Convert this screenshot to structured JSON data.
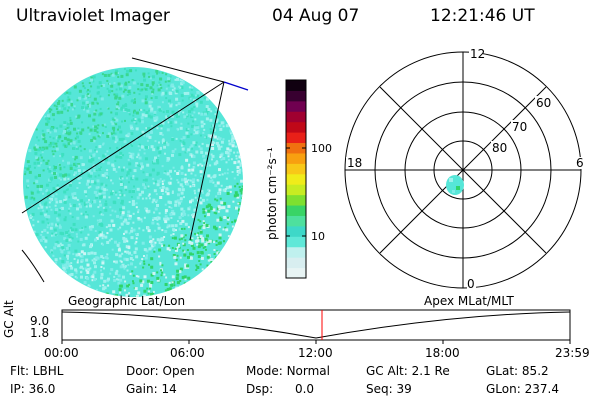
{
  "header": {
    "title": "Ultraviolet Imager",
    "date": "04 Aug 07",
    "time": "12:21:46 UT"
  },
  "colorbar": {
    "unit_label": "photon cm⁻²s⁻¹",
    "tick_100": "100",
    "tick_10": "10",
    "colors": [
      "#e8f4f4",
      "#d8eef0",
      "#bff0ee",
      "#5fe8d8",
      "#3ed8c8",
      "#4ee09e",
      "#39d466",
      "#7ee030",
      "#c7ec22",
      "#f0ec1a",
      "#f8c818",
      "#f8a010",
      "#f07010",
      "#e82018",
      "#c00818",
      "#a00030",
      "#700050",
      "#380030",
      "#100010"
    ],
    "colors_note": "color ramp from low to high"
  },
  "globe": {
    "base_color": "#56e6d8",
    "speckle_colors": [
      "#3ee0c0",
      "#7fece8",
      "#9ff2ee",
      "#cdf5f5",
      "#2fd46a",
      "#38d890"
    ]
  },
  "polar": {
    "labels_mlt": {
      "top": "12",
      "bottom": "0",
      "left": "18",
      "right": "6"
    },
    "labels_lat": [
      "60",
      "70",
      "80"
    ]
  },
  "timeline": {
    "left_title": "Geographic Lat/Lon",
    "right_title": "Apex MLat/MLT",
    "axis_label": "GC Alt",
    "y_top": "9.0",
    "y_bottom": "1.8",
    "time_ticks": [
      "00:00",
      "06:00",
      "12:00",
      "18:00",
      "23:59"
    ],
    "current_marker": "12:21:46"
  },
  "info": {
    "flt_label": "Flt:",
    "flt_value": "LBHL",
    "ip_label": "IP:",
    "ip_value": "36.0",
    "door_label": "Door:",
    "door_value": "Open",
    "gain_label": "Gain:",
    "gain_value": "14",
    "mode_label": "Mode:",
    "mode_value": "Normal",
    "dsp_label": "Dsp:",
    "dsp_value": "0.0",
    "gcalt_label": "GC Alt:",
    "gcalt_value": "2.1 Re",
    "seq_label": "Seq:",
    "seq_value": "39",
    "glat_label": "GLat:",
    "glat_value": "85.2",
    "glon_label": "GLon:",
    "glon_value": "237.4"
  }
}
